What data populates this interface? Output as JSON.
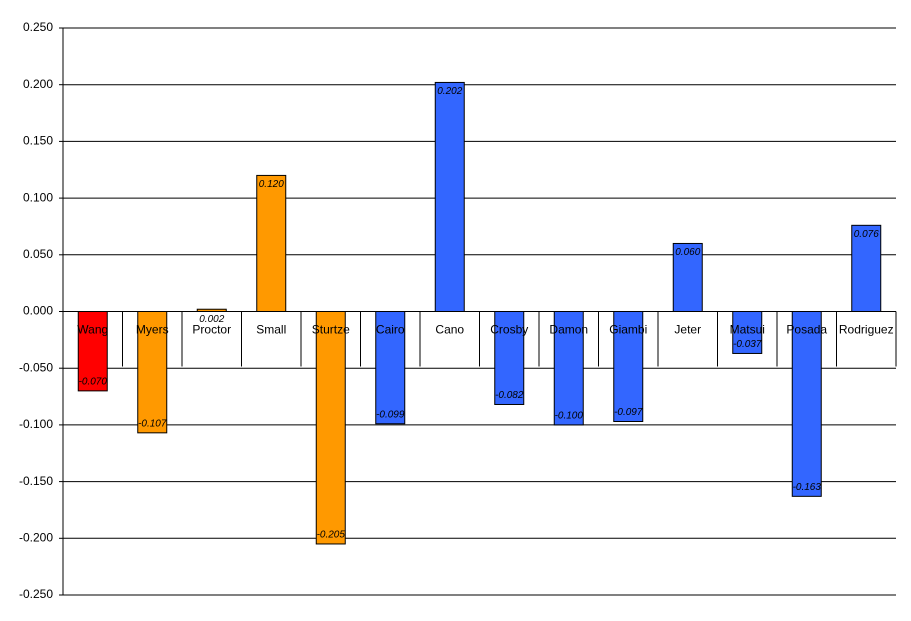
{
  "chart_data": {
    "type": "bar",
    "categories": [
      "Wang",
      "Myers",
      "Proctor",
      "Small",
      "Sturtze",
      "Cairo",
      "Cano",
      "Crosby",
      "Damon",
      "Giambi",
      "Jeter",
      "Matsui",
      "Posada",
      "Rodriguez"
    ],
    "values": [
      -0.07,
      -0.107,
      0.002,
      0.12,
      -0.205,
      -0.099,
      0.202,
      -0.082,
      -0.1,
      -0.097,
      0.06,
      -0.037,
      -0.163,
      0.076
    ],
    "value_labels": [
      "-0.070",
      "-0.107",
      "0.002",
      "0.120",
      "-0.205",
      "-0.099",
      "0.202",
      "-0.082",
      "-0.100",
      "-0.097",
      "0.060",
      "-0.037",
      "-0.163",
      "0.076"
    ],
    "colors": [
      "#ff0000",
      "#ff9900",
      "#ff9900",
      "#ff9900",
      "#ff9900",
      "#3366ff",
      "#3366ff",
      "#3366ff",
      "#3366ff",
      "#3366ff",
      "#3366ff",
      "#3366ff",
      "#3366ff",
      "#3366ff"
    ],
    "ylim": [
      -0.25,
      0.25
    ],
    "yticks": [
      {
        "value": -0.25,
        "label": "-0.250"
      },
      {
        "value": -0.2,
        "label": "-0.200"
      },
      {
        "value": -0.15,
        "label": "-0.150"
      },
      {
        "value": -0.1,
        "label": "-0.100"
      },
      {
        "value": -0.05,
        "label": "-0.050"
      },
      {
        "value": 0,
        "label": "0.000"
      },
      {
        "value": 0.05,
        "label": "0.050"
      },
      {
        "value": 0.1,
        "label": "0.100"
      },
      {
        "value": 0.15,
        "label": "0.150"
      },
      {
        "value": 0.2,
        "label": "0.200"
      },
      {
        "value": 0.25,
        "label": "0.250"
      }
    ],
    "grid": true
  }
}
